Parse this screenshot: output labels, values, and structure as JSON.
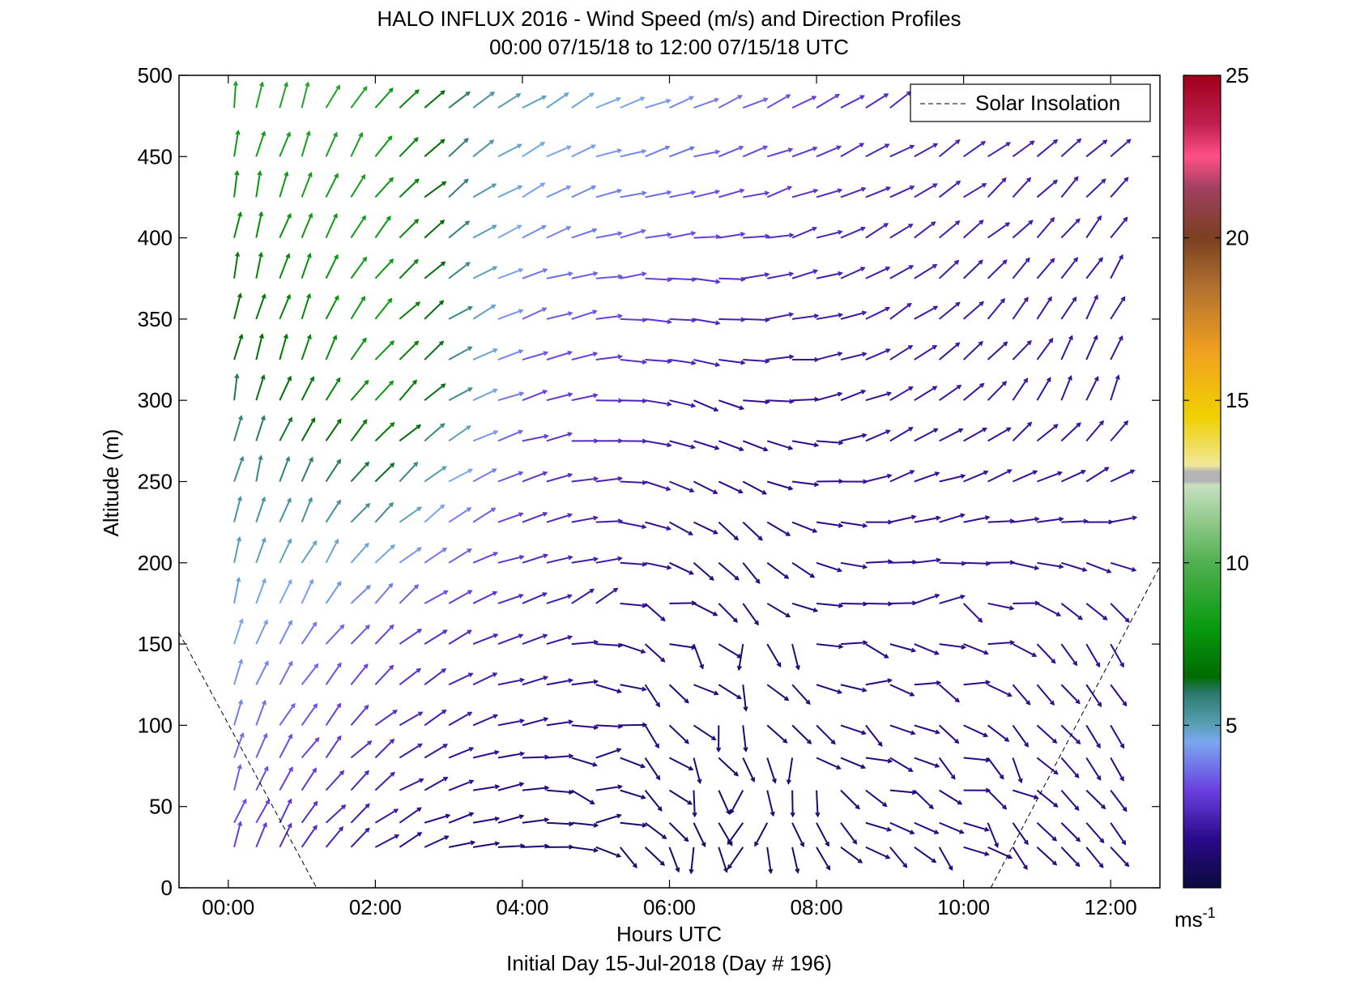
{
  "chart_data": {
    "type": "wind-barb-profile",
    "title": "HALO INFLUX 2016 - Wind Speed (m/s) and Direction Profiles",
    "subtitle": "00:00 07/15/18 to 12:00 07/15/18  UTC",
    "xlabel": "Hours UTC",
    "x_caption": "Initial Day 15-Jul-2018 (Day # 196)",
    "ylabel": "Altitude (m)",
    "xlim": [
      -0.67,
      12.67
    ],
    "ylim": [
      0,
      500
    ],
    "x_ticks": [
      0,
      2,
      4,
      6,
      8,
      10,
      12
    ],
    "x_tick_labels": [
      "00:00",
      "02:00",
      "04:00",
      "06:00",
      "08:00",
      "10:00",
      "12:00"
    ],
    "y_ticks": [
      0,
      50,
      100,
      150,
      200,
      250,
      300,
      350,
      400,
      450,
      500
    ],
    "y_tick_labels": [
      "0",
      "50",
      "100",
      "150",
      "200",
      "250",
      "300",
      "350",
      "400",
      "450",
      "500"
    ],
    "legend": {
      "entries": [
        "Solar Insolation"
      ],
      "placement": "top-right"
    },
    "colorbar": {
      "range": [
        0,
        25
      ],
      "ticks": [
        5,
        10,
        15,
        20,
        25
      ],
      "tick_labels": [
        "5",
        "10",
        "15",
        "20",
        "25"
      ],
      "unit": "ms-1",
      "stops": [
        {
          "v": 0,
          "c": "#0a0a3c"
        },
        {
          "v": 1.5,
          "c": "#2a0a8a"
        },
        {
          "v": 3,
          "c": "#6a40e0"
        },
        {
          "v": 4.5,
          "c": "#7aa8f0"
        },
        {
          "v": 5,
          "c": "#5aa0b8"
        },
        {
          "v": 6,
          "c": "#2a7a6a"
        },
        {
          "v": 6.5,
          "c": "#006a00"
        },
        {
          "v": 8,
          "c": "#0a9a10"
        },
        {
          "v": 10,
          "c": "#50b050"
        },
        {
          "v": 12.4,
          "c": "#c8e0c0"
        },
        {
          "v": 12.5,
          "c": "#b4b4b4"
        },
        {
          "v": 12.8,
          "c": "#b4b4b4"
        },
        {
          "v": 13,
          "c": "#f0e89a"
        },
        {
          "v": 14.5,
          "c": "#f0d000"
        },
        {
          "v": 16.5,
          "c": "#f0a020"
        },
        {
          "v": 18.5,
          "c": "#b07030"
        },
        {
          "v": 20,
          "c": "#7a4020"
        },
        {
          "v": 21.5,
          "c": "#a04060"
        },
        {
          "v": 22.5,
          "c": "#ff5088"
        },
        {
          "v": 23.5,
          "c": "#c02050"
        },
        {
          "v": 25,
          "c": "#a00018"
        }
      ]
    },
    "solar_insolation": [
      {
        "x": [
          -0.67,
          1.2
        ],
        "y": [
          157,
          0
        ]
      },
      {
        "x": [
          10.37,
          12.67
        ],
        "y": [
          0,
          198
        ]
      }
    ],
    "wind_grid": {
      "altitudes": [
        25,
        40,
        60,
        80,
        100,
        125,
        150,
        175,
        200,
        225,
        250,
        275,
        300,
        325,
        350,
        375,
        400,
        425,
        450,
        480
      ],
      "times": [
        0.08,
        0.38,
        0.7,
        1.0,
        1.33,
        1.67,
        2.0,
        2.33,
        2.67,
        3.0,
        3.33,
        3.67,
        4.0,
        4.33,
        4.67,
        5.0,
        5.33,
        5.67,
        6.0,
        6.33,
        6.67,
        7.0,
        7.33,
        7.67,
        8.0,
        8.33,
        8.67,
        9.0,
        9.33,
        9.67,
        10.0,
        10.33,
        10.67,
        11.0,
        11.33,
        11.67,
        12.0
      ],
      "regimes": [
        {
          "t": 0,
          "alt": 480,
          "dir": 5,
          "speed": 8.5
        },
        {
          "t": 1.6,
          "alt": 480,
          "dir": 30,
          "speed": 8.8
        },
        {
          "t": 3.4,
          "alt": 480,
          "dir": 55,
          "speed": 5.2
        },
        {
          "t": 5.8,
          "alt": 480,
          "dir": 70,
          "speed": 4.2
        },
        {
          "t": 8.5,
          "alt": 480,
          "dir": 60,
          "speed": 2.4
        },
        {
          "t": 11.8,
          "alt": 480,
          "dir": 50,
          "speed": 2.0
        },
        {
          "t": 0,
          "alt": 300,
          "dir": 10,
          "speed": 6.0
        },
        {
          "t": 2.0,
          "alt": 300,
          "dir": 40,
          "speed": 8.0
        },
        {
          "t": 4.0,
          "alt": 300,
          "dir": 75,
          "speed": 3.0
        },
        {
          "t": 6.5,
          "alt": 300,
          "dir": 110,
          "speed": 1.6
        },
        {
          "t": 9.0,
          "alt": 300,
          "dir": 60,
          "speed": 1.8
        },
        {
          "t": 11.8,
          "alt": 300,
          "dir": 20,
          "speed": 1.8
        },
        {
          "t": 0,
          "alt": 150,
          "dir": 15,
          "speed": 4.6
        },
        {
          "t": 2.5,
          "alt": 150,
          "dir": 55,
          "speed": 2.6
        },
        {
          "t": 5.0,
          "alt": 150,
          "dir": 85,
          "speed": 1.6
        },
        {
          "t": 7.0,
          "alt": 150,
          "dir": 160,
          "speed": 1.0
        },
        {
          "t": 9.0,
          "alt": 150,
          "dir": 95,
          "speed": 1.6
        },
        {
          "t": 11.8,
          "alt": 150,
          "dir": 150,
          "speed": 1.6
        },
        {
          "t": 0,
          "alt": 25,
          "dir": 20,
          "speed": 3.0
        },
        {
          "t": 2.8,
          "alt": 25,
          "dir": 70,
          "speed": 1.2
        },
        {
          "t": 5.5,
          "alt": 25,
          "dir": 110,
          "speed": 0.8
        },
        {
          "t": 7.0,
          "alt": 25,
          "dir": 200,
          "speed": 0.9
        },
        {
          "t": 9.0,
          "alt": 25,
          "dir": 110,
          "speed": 1.2
        },
        {
          "t": 11.8,
          "alt": 25,
          "dir": 140,
          "speed": 1.4
        }
      ]
    }
  }
}
